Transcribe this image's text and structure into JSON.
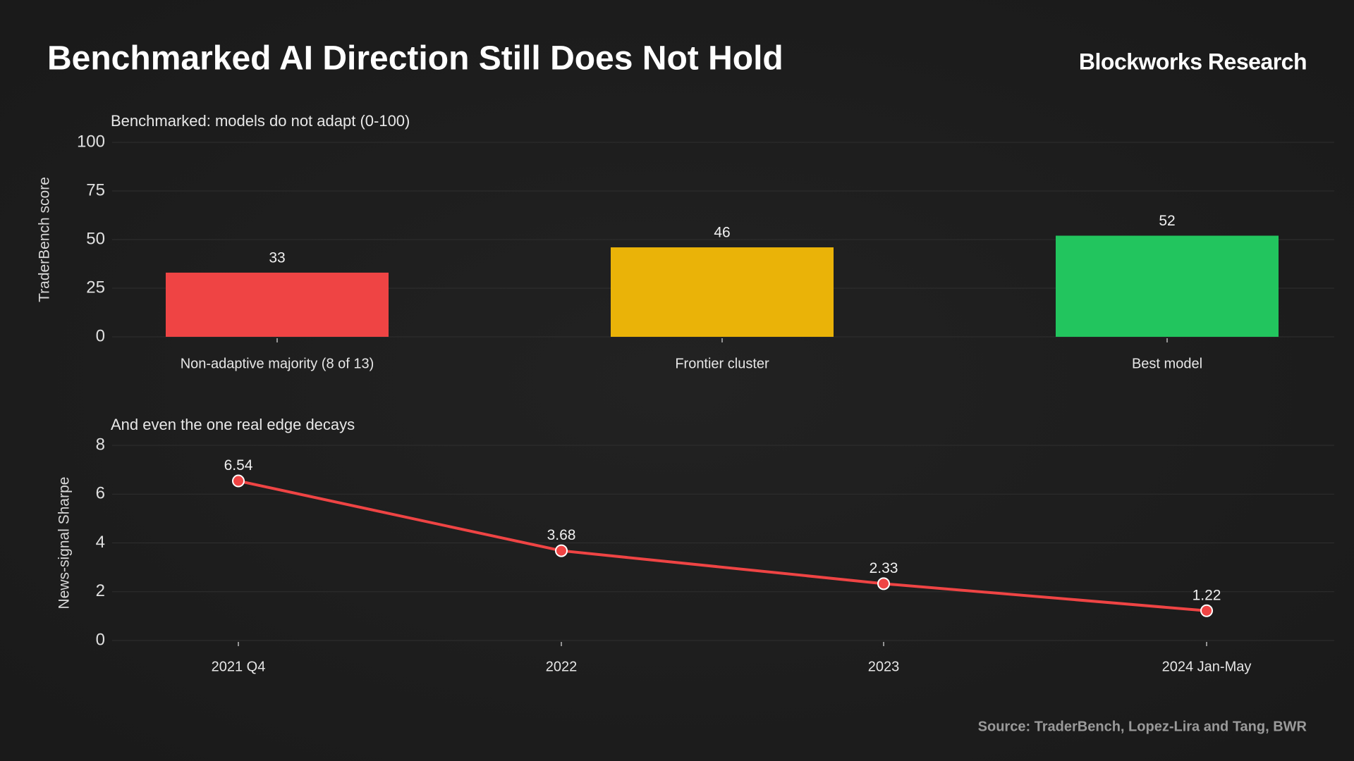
{
  "header": {
    "title": "Benchmarked AI Direction Still Does Not Hold",
    "brand": "Blockworks Research"
  },
  "source": "Source: TraderBench, Lopez-Lira and Tang, BWR",
  "chart_data": [
    {
      "type": "bar",
      "title": "Benchmarked: models do not adapt (0-100)",
      "y_label": "TraderBench score",
      "categories": [
        "Non-adaptive majority (8 of 13)",
        "Frontier cluster",
        "Best model"
      ],
      "values": [
        33,
        46,
        52
      ],
      "colors": [
        "#ef4444",
        "#eab308",
        "#22c55e"
      ],
      "ylim": [
        0,
        100
      ],
      "yticks": [
        0,
        25,
        50,
        75,
        100
      ],
      "grid": true
    },
    {
      "type": "line",
      "title": "And even the one real edge decays",
      "y_label": "News-signal Sharpe",
      "categories": [
        "2021 Q4",
        "2022",
        "2023",
        "2024 Jan-May"
      ],
      "values": [
        6.54,
        3.68,
        2.33,
        1.22
      ],
      "color": "#ef4444",
      "ylim": [
        0,
        8
      ],
      "yticks": [
        0,
        2,
        4,
        6,
        8
      ],
      "grid": true
    }
  ]
}
